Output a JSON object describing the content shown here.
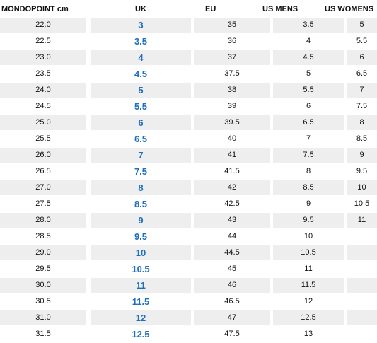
{
  "table": {
    "headers": [
      "MONDOPOINT cm",
      "UK",
      "EU",
      "US MENS",
      "US WOMENS"
    ],
    "rows": [
      [
        "22.0",
        "3",
        "35",
        "3.5",
        "5"
      ],
      [
        "22.5",
        "3.5",
        "36",
        "4",
        "5.5"
      ],
      [
        "23.0",
        "4",
        "37",
        "4.5",
        "6"
      ],
      [
        "23.5",
        "4.5",
        "37.5",
        "5",
        "6.5"
      ],
      [
        "24.0",
        "5",
        "38",
        "5.5",
        "7"
      ],
      [
        "24.5",
        "5.5",
        "39",
        "6",
        "7.5"
      ],
      [
        "25.0",
        "6",
        "39.5",
        "6.5",
        "8"
      ],
      [
        "25.5",
        "6.5",
        "40",
        "7",
        "8.5"
      ],
      [
        "26.0",
        "7",
        "41",
        "7.5",
        "9"
      ],
      [
        "26.5",
        "7.5",
        "41.5",
        "8",
        "9.5"
      ],
      [
        "27.0",
        "8",
        "42",
        "8.5",
        "10"
      ],
      [
        "27.5",
        "8.5",
        "42.5",
        "9",
        "10.5"
      ],
      [
        "28.0",
        "9",
        "43",
        "9.5",
        "11"
      ],
      [
        "28.5",
        "9.5",
        "44",
        "10",
        ""
      ],
      [
        "29.0",
        "10",
        "44.5",
        "10.5",
        ""
      ],
      [
        "29.5",
        "10.5",
        "45",
        "11",
        ""
      ],
      [
        "30.0",
        "11",
        "46",
        "11.5",
        ""
      ],
      [
        "30.5",
        "11.5",
        "46.5",
        "12",
        ""
      ],
      [
        "31.0",
        "12",
        "47",
        "12.5",
        ""
      ],
      [
        "31.5",
        "12.5",
        "47.5",
        "13",
        ""
      ]
    ]
  },
  "colors": {
    "uk_text": "#1f6fbf",
    "row_shade": "#eeeeee"
  }
}
